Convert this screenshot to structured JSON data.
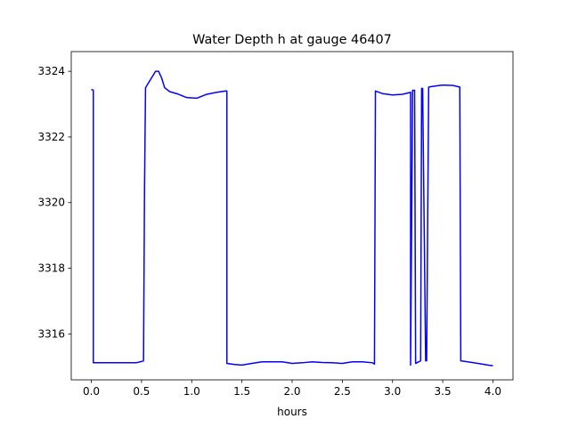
{
  "chart_data": {
    "type": "line",
    "title": "Water Depth h at gauge 46407",
    "xlabel": "hours",
    "ylabel": "",
    "xlim": [
      -0.2,
      4.2
    ],
    "ylim": [
      3314.6,
      3324.6
    ],
    "xticks": [
      0.0,
      0.5,
      1.0,
      1.5,
      2.0,
      2.5,
      3.0,
      3.5,
      4.0
    ],
    "xtick_labels": [
      "0.0",
      "0.5",
      "1.0",
      "1.5",
      "2.0",
      "2.5",
      "3.0",
      "3.5",
      "4.0"
    ],
    "yticks": [
      3316,
      3318,
      3320,
      3322,
      3324
    ],
    "ytick_labels": [
      "3316",
      "3318",
      "3320",
      "3322",
      "3324"
    ],
    "grid": false,
    "line_color": "#0000ff",
    "series": [
      {
        "name": "",
        "x": [
          0.0,
          0.02,
          0.02,
          0.1,
          0.3,
          0.45,
          0.52,
          0.53,
          0.54,
          0.56,
          0.6,
          0.64,
          0.67,
          0.7,
          0.73,
          0.78,
          0.85,
          0.95,
          1.05,
          1.15,
          1.25,
          1.34,
          1.35,
          1.35,
          1.42,
          1.5,
          1.6,
          1.7,
          1.8,
          1.9,
          2.0,
          2.1,
          2.2,
          2.3,
          2.4,
          2.5,
          2.6,
          2.7,
          2.8,
          2.82,
          2.83,
          2.9,
          3.0,
          3.1,
          3.18,
          3.18,
          3.2,
          3.22,
          3.23,
          3.23,
          3.28,
          3.29,
          3.3,
          3.33,
          3.34,
          3.36,
          3.42,
          3.5,
          3.6,
          3.67,
          3.68,
          3.75,
          3.85,
          3.95,
          4.0
        ],
        "y": [
          3323.45,
          3323.42,
          3315.12,
          3315.12,
          3315.12,
          3315.12,
          3315.18,
          3320.5,
          3323.5,
          3323.6,
          3323.8,
          3324.0,
          3324.0,
          3323.8,
          3323.5,
          3323.38,
          3323.32,
          3323.2,
          3323.18,
          3323.3,
          3323.36,
          3323.4,
          3323.4,
          3315.1,
          3315.07,
          3315.05,
          3315.1,
          3315.15,
          3315.15,
          3315.15,
          3315.1,
          3315.12,
          3315.15,
          3315.13,
          3315.12,
          3315.1,
          3315.15,
          3315.15,
          3315.12,
          3315.08,
          3323.4,
          3323.32,
          3323.28,
          3323.3,
          3323.36,
          3315.05,
          3323.42,
          3323.42,
          3315.1,
          3315.1,
          3315.18,
          3323.48,
          3323.48,
          3315.18,
          3315.18,
          3323.52,
          3323.55,
          3323.58,
          3323.57,
          3323.52,
          3315.18,
          3315.15,
          3315.1,
          3315.05,
          3315.03
        ]
      }
    ]
  }
}
